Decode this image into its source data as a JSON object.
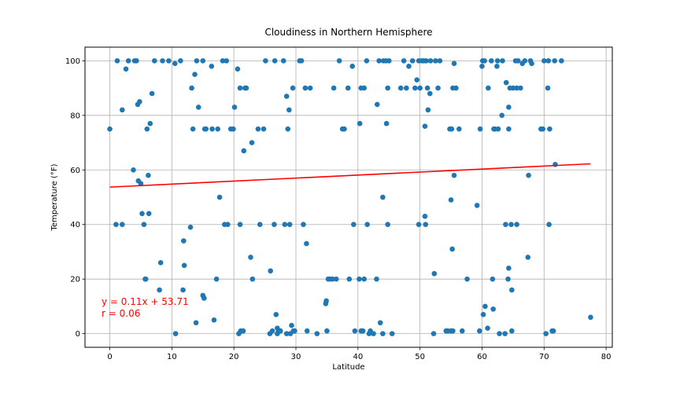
{
  "chart_data": {
    "type": "scatter",
    "title": "Cloudiness in Northern Hemisphere",
    "xlabel": "Latitude",
    "ylabel": "Temperature (°F)",
    "xlim": [
      -4,
      81
    ],
    "ylim": [
      -5,
      105
    ],
    "xticks": [
      0,
      10,
      20,
      30,
      40,
      50,
      60,
      70,
      80
    ],
    "yticks": [
      0,
      20,
      40,
      60,
      80,
      100
    ],
    "grid": true,
    "colors": {
      "points": "#1f77b4",
      "regression": "#ff0000"
    },
    "regression": {
      "slope": 0.11,
      "intercept": 53.71,
      "x_start": 0,
      "x_end": 77.5
    },
    "annotations": [
      "y = 0.11x + 53.71",
      "r = 0.06"
    ],
    "points": [
      [
        0,
        75
      ],
      [
        1,
        40
      ],
      [
        1.2,
        100
      ],
      [
        2,
        82
      ],
      [
        2,
        40
      ],
      [
        2.6,
        97
      ],
      [
        3,
        100
      ],
      [
        3.8,
        60
      ],
      [
        4,
        100
      ],
      [
        4.3,
        100
      ],
      [
        4.5,
        84
      ],
      [
        4.6,
        56
      ],
      [
        4.8,
        85
      ],
      [
        5,
        55
      ],
      [
        5.2,
        44
      ],
      [
        5.5,
        40
      ],
      [
        5.7,
        20
      ],
      [
        5.8,
        20
      ],
      [
        6,
        75
      ],
      [
        6.2,
        58
      ],
      [
        6.3,
        44
      ],
      [
        6.5,
        77
      ],
      [
        6.8,
        88
      ],
      [
        7.2,
        100
      ],
      [
        8.2,
        26
      ],
      [
        8,
        16
      ],
      [
        8.5,
        100
      ],
      [
        9.5,
        100
      ],
      [
        10.5,
        99
      ],
      [
        10.6,
        0
      ],
      [
        11.4,
        100
      ],
      [
        11.8,
        16
      ],
      [
        11.9,
        34
      ],
      [
        12,
        25
      ],
      [
        13,
        39
      ],
      [
        13.2,
        90
      ],
      [
        13.4,
        75
      ],
      [
        13.7,
        95
      ],
      [
        13.9,
        4
      ],
      [
        14,
        100
      ],
      [
        14.3,
        83
      ],
      [
        15,
        100
      ],
      [
        15,
        14
      ],
      [
        15.2,
        13
      ],
      [
        15.3,
        75
      ],
      [
        15.5,
        75
      ],
      [
        16.4,
        98
      ],
      [
        16.5,
        75
      ],
      [
        16.8,
        5
      ],
      [
        17.2,
        20
      ],
      [
        17.4,
        75
      ],
      [
        17.7,
        50
      ],
      [
        18.2,
        100
      ],
      [
        18.5,
        40
      ],
      [
        18.8,
        100
      ],
      [
        19,
        40
      ],
      [
        19.5,
        75
      ],
      [
        19.9,
        75
      ],
      [
        20.1,
        83
      ],
      [
        20.6,
        97
      ],
      [
        20.8,
        0
      ],
      [
        21,
        90
      ],
      [
        21,
        40
      ],
      [
        21.1,
        1
      ],
      [
        21.5,
        1
      ],
      [
        21.6,
        67
      ],
      [
        21.8,
        90
      ],
      [
        22,
        90
      ],
      [
        22.7,
        28
      ],
      [
        22.9,
        70
      ],
      [
        23,
        20
      ],
      [
        23.9,
        75
      ],
      [
        24.2,
        40
      ],
      [
        24.8,
        75
      ],
      [
        25.1,
        100
      ],
      [
        25.8,
        0
      ],
      [
        25.9,
        23
      ],
      [
        26.2,
        1
      ],
      [
        26.5,
        40
      ],
      [
        26.6,
        100
      ],
      [
        26.8,
        7
      ],
      [
        27,
        2
      ],
      [
        27.2,
        1
      ],
      [
        27,
        0
      ],
      [
        27.5,
        1
      ],
      [
        28,
        100
      ],
      [
        28.2,
        40
      ],
      [
        28.5,
        0
      ],
      [
        28.5,
        87
      ],
      [
        28.7,
        75
      ],
      [
        28.9,
        82
      ],
      [
        29,
        40
      ],
      [
        29.1,
        0
      ],
      [
        29.3,
        3
      ],
      [
        29.5,
        90
      ],
      [
        29.6,
        1
      ],
      [
        29.8,
        1
      ],
      [
        30.6,
        100
      ],
      [
        30.9,
        100
      ],
      [
        31.2,
        40
      ],
      [
        31.5,
        90
      ],
      [
        31.7,
        33
      ],
      [
        31.8,
        1
      ],
      [
        32.3,
        90
      ],
      [
        33.4,
        0
      ],
      [
        34.8,
        11
      ],
      [
        34.9,
        12
      ],
      [
        35,
        1
      ],
      [
        35.2,
        20
      ],
      [
        35.5,
        20
      ],
      [
        35.9,
        20
      ],
      [
        36.1,
        90
      ],
      [
        36.5,
        20
      ],
      [
        37,
        100
      ],
      [
        37.5,
        75
      ],
      [
        37.8,
        75
      ],
      [
        38.4,
        90
      ],
      [
        38.6,
        20
      ],
      [
        39.1,
        98
      ],
      [
        39.3,
        40
      ],
      [
        39.5,
        1
      ],
      [
        40.2,
        20
      ],
      [
        40.3,
        77
      ],
      [
        40.5,
        90
      ],
      [
        40.5,
        1
      ],
      [
        40.8,
        1
      ],
      [
        41,
        90
      ],
      [
        41,
        20
      ],
      [
        41.4,
        100
      ],
      [
        41.5,
        40
      ],
      [
        41.8,
        0
      ],
      [
        42,
        1
      ],
      [
        42.5,
        0
      ],
      [
        43,
        20
      ],
      [
        43.1,
        84
      ],
      [
        43.4,
        100
      ],
      [
        43.6,
        4
      ],
      [
        44,
        50
      ],
      [
        44,
        0
      ],
      [
        44.1,
        100
      ],
      [
        44.5,
        100
      ],
      [
        44.6,
        77
      ],
      [
        44.8,
        90
      ],
      [
        44.8,
        40
      ],
      [
        45,
        100
      ],
      [
        45.5,
        0
      ],
      [
        46.9,
        90
      ],
      [
        47.4,
        100
      ],
      [
        47.8,
        90
      ],
      [
        48.2,
        98
      ],
      [
        48.8,
        100
      ],
      [
        49.2,
        90
      ],
      [
        49.5,
        93
      ],
      [
        49.8,
        40
      ],
      [
        49.8,
        100
      ],
      [
        50,
        90
      ],
      [
        50.3,
        100
      ],
      [
        50.6,
        100
      ],
      [
        50.8,
        76
      ],
      [
        50.8,
        43
      ],
      [
        50.9,
        40
      ],
      [
        51,
        100
      ],
      [
        51.2,
        90
      ],
      [
        51.3,
        82
      ],
      [
        51.6,
        88
      ],
      [
        51.7,
        100
      ],
      [
        52.2,
        0
      ],
      [
        52.3,
        22
      ],
      [
        52.5,
        100
      ],
      [
        52.9,
        90
      ],
      [
        53.2,
        100
      ],
      [
        54.2,
        1
      ],
      [
        54.5,
        1
      ],
      [
        54.8,
        75
      ],
      [
        55,
        1
      ],
      [
        55.1,
        75
      ],
      [
        55,
        49
      ],
      [
        55.2,
        31
      ],
      [
        55.3,
        1
      ],
      [
        55.5,
        99
      ],
      [
        55.5,
        58
      ],
      [
        55.8,
        90
      ],
      [
        55.3,
        90
      ],
      [
        56.3,
        75
      ],
      [
        56.8,
        1
      ],
      [
        57.6,
        20
      ],
      [
        59.2,
        47
      ],
      [
        59.6,
        1
      ],
      [
        59.7,
        75
      ],
      [
        60,
        98
      ],
      [
        60.1,
        100
      ],
      [
        60.2,
        7
      ],
      [
        60.4,
        100
      ],
      [
        60.5,
        10
      ],
      [
        60.9,
        2
      ],
      [
        61,
        90
      ],
      [
        61.5,
        100
      ],
      [
        61.7,
        20
      ],
      [
        61.8,
        9
      ],
      [
        61.9,
        75
      ],
      [
        62.1,
        75
      ],
      [
        62.4,
        98
      ],
      [
        62.5,
        100
      ],
      [
        62.6,
        75
      ],
      [
        62.8,
        0
      ],
      [
        63.2,
        80
      ],
      [
        63.3,
        100
      ],
      [
        63.7,
        0
      ],
      [
        63.8,
        40
      ],
      [
        63.9,
        92
      ],
      [
        64.3,
        75
      ],
      [
        64.3,
        83
      ],
      [
        64.2,
        20
      ],
      [
        64.3,
        24
      ],
      [
        64.5,
        90
      ],
      [
        64.7,
        40
      ],
      [
        64.8,
        1
      ],
      [
        64.8,
        16
      ],
      [
        65,
        90
      ],
      [
        65.4,
        100
      ],
      [
        65.6,
        40
      ],
      [
        65.6,
        90
      ],
      [
        65.8,
        100
      ],
      [
        66.2,
        90
      ],
      [
        66.5,
        99
      ],
      [
        66.9,
        100
      ],
      [
        67.4,
        28
      ],
      [
        67.5,
        58
      ],
      [
        67.8,
        100
      ],
      [
        68,
        99
      ],
      [
        69.5,
        75
      ],
      [
        69.8,
        75
      ],
      [
        70,
        100
      ],
      [
        70.3,
        0
      ],
      [
        70.6,
        90
      ],
      [
        70.7,
        100
      ],
      [
        70.8,
        40
      ],
      [
        70.9,
        75
      ],
      [
        71.3,
        1
      ],
      [
        71.5,
        1
      ],
      [
        71.7,
        100
      ],
      [
        71.8,
        62
      ],
      [
        72.8,
        100
      ],
      [
        77.5,
        6
      ]
    ]
  }
}
